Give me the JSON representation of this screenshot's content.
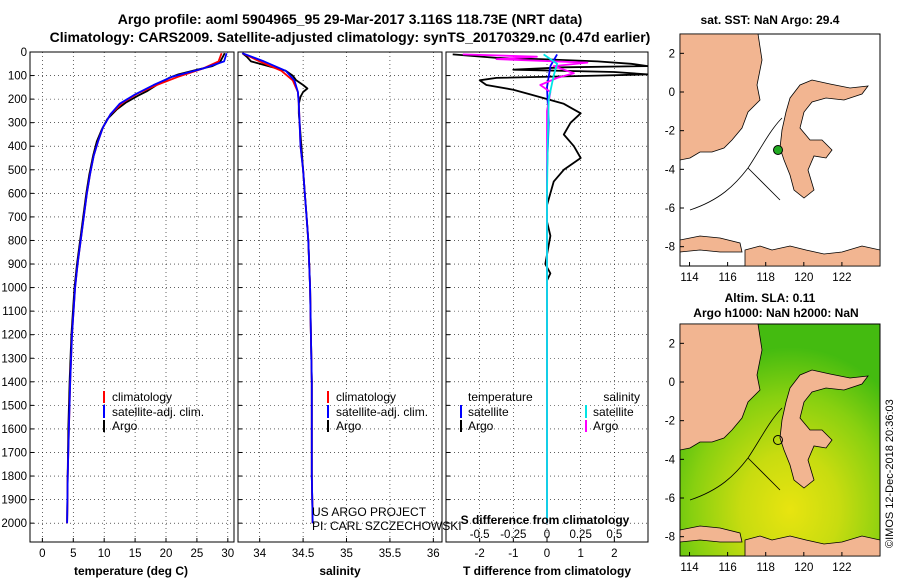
{
  "title_line1": "Argo profile: aoml 5904965_95 29-Mar-2017 3.116S 118.73E (NRT data)",
  "title_line2": "Climatology: CARS2009. Satellite-adjusted climatology: synTS_20170329.nc (0.47d earlier)",
  "credit": "©IMOS 12-Dec-2018 20:36:03",
  "colors": {
    "clim": "#ff0000",
    "sat": "#0000ff",
    "argo": "#000000",
    "sal_sat": "#00e5e5",
    "sal_argo": "#ff00ff",
    "land": "#f2b591"
  },
  "chart_data": [
    {
      "type": "line",
      "name": "temperature",
      "xlabel": "temperature (deg C)",
      "ylabel": "",
      "xlim": [
        -2,
        31
      ],
      "ylim": [
        2080,
        0
      ],
      "xticks": [
        0,
        5,
        10,
        15,
        20,
        25,
        30
      ],
      "yticks": [
        0,
        100,
        200,
        300,
        400,
        500,
        600,
        700,
        800,
        900,
        1000,
        1100,
        1200,
        1300,
        1400,
        1500,
        1600,
        1700,
        1800,
        1900,
        2000
      ],
      "legend": [
        "climatology",
        "satellite-adj. clim.",
        "Argo"
      ],
      "series": [
        {
          "name": "Argo",
          "color": "#000000",
          "points": [
            [
              29.5,
              5
            ],
            [
              29.3,
              15
            ],
            [
              29,
              30
            ],
            [
              28.7,
              45
            ],
            [
              27.5,
              60
            ],
            [
              25,
              75
            ],
            [
              22,
              95
            ],
            [
              20.5,
              110
            ],
            [
              18.5,
              140
            ],
            [
              17,
              165
            ],
            [
              15.5,
              185
            ],
            [
              13.5,
              215
            ],
            [
              12,
              245
            ],
            [
              10.5,
              285
            ],
            [
              9.6,
              330
            ],
            [
              8.8,
              380
            ],
            [
              8.2,
              440
            ],
            [
              7.6,
              520
            ],
            [
              7.1,
              600
            ],
            [
              6.6,
              700
            ],
            [
              6.1,
              800
            ],
            [
              5.6,
              900
            ],
            [
              5.2,
              1000
            ],
            [
              4.7,
              1200
            ],
            [
              4.4,
              1400
            ],
            [
              4.2,
              1600
            ],
            [
              4.1,
              1800
            ],
            [
              4,
              2000
            ]
          ]
        },
        {
          "name": "climatology",
          "color": "#ff0000",
          "points": [
            [
              29,
              5
            ],
            [
              28.5,
              40
            ],
            [
              26,
              70
            ],
            [
              22,
              105
            ],
            [
              18.5,
              140
            ],
            [
              15.5,
              175
            ],
            [
              13,
              215
            ],
            [
              11,
              265
            ],
            [
              9.8,
              320
            ],
            [
              9,
              380
            ],
            [
              8.3,
              440
            ],
            [
              7.7,
              520
            ],
            [
              7.2,
              600
            ],
            [
              6.7,
              700
            ],
            [
              6.2,
              800
            ],
            [
              5.7,
              900
            ],
            [
              5.3,
              1000
            ],
            [
              4.8,
              1200
            ],
            [
              4.5,
              1400
            ],
            [
              4.3,
              1600
            ],
            [
              4.1,
              1800
            ],
            [
              4,
              2000
            ]
          ]
        },
        {
          "name": "satellite-adj. clim.",
          "color": "#0000ff",
          "points": [
            [
              29.8,
              5
            ],
            [
              29.4,
              40
            ],
            [
              26,
              70
            ],
            [
              21,
              105
            ],
            [
              18,
              140
            ],
            [
              15,
              180
            ],
            [
              12.5,
              220
            ],
            [
              11,
              265
            ],
            [
              9.8,
              320
            ],
            [
              9,
              380
            ],
            [
              8.3,
              440
            ],
            [
              7.7,
              520
            ],
            [
              7.2,
              600
            ],
            [
              6.7,
              700
            ],
            [
              6.2,
              800
            ],
            [
              5.7,
              900
            ],
            [
              5.3,
              1000
            ],
            [
              4.8,
              1200
            ],
            [
              4.5,
              1400
            ],
            [
              4.3,
              1600
            ],
            [
              4.1,
              1800
            ],
            [
              4,
              2000
            ]
          ]
        }
      ]
    },
    {
      "type": "line",
      "name": "salinity",
      "xlabel": "salinity",
      "ylabel": "",
      "xlim": [
        33.75,
        36.1
      ],
      "ylim": [
        2080,
        0
      ],
      "xticks": [
        34,
        34.5,
        35,
        35.5,
        36
      ],
      "yticks": [
        0,
        100,
        200,
        300,
        400,
        500,
        600,
        700,
        800,
        900,
        1000,
        1100,
        1200,
        1300,
        1400,
        1500,
        1600,
        1700,
        1800,
        1900,
        2000
      ],
      "legend": [
        "climatology",
        "satellite-adj. clim.",
        "Argo"
      ],
      "series": [
        {
          "name": "Argo",
          "color": "#000000",
          "points": [
            [
              33.8,
              5
            ],
            [
              33.85,
              20
            ],
            [
              33.9,
              40
            ],
            [
              34.1,
              60
            ],
            [
              34.3,
              80
            ],
            [
              34.38,
              100
            ],
            [
              34.42,
              120
            ],
            [
              34.5,
              140
            ],
            [
              34.55,
              155
            ],
            [
              34.5,
              170
            ],
            [
              34.47,
              190
            ],
            [
              34.45,
              220
            ],
            [
              34.45,
              260
            ],
            [
              34.46,
              300
            ],
            [
              34.47,
              350
            ],
            [
              34.48,
              400
            ],
            [
              34.5,
              500
            ],
            [
              34.52,
              600
            ],
            [
              34.54,
              700
            ],
            [
              34.56,
              800
            ],
            [
              34.57,
              900
            ],
            [
              34.58,
              1000
            ],
            [
              34.59,
              1200
            ],
            [
              34.6,
              1400
            ],
            [
              34.6,
              1600
            ],
            [
              34.6,
              1800
            ],
            [
              34.61,
              2000
            ]
          ]
        },
        {
          "name": "climatology",
          "color": "#ff0000",
          "points": [
            [
              33.8,
              5
            ],
            [
              34,
              40
            ],
            [
              34.25,
              80
            ],
            [
              34.38,
              120
            ],
            [
              34.44,
              170
            ],
            [
              34.45,
              220
            ],
            [
              34.46,
              300
            ],
            [
              34.47,
              400
            ],
            [
              34.5,
              500
            ],
            [
              34.52,
              600
            ],
            [
              34.54,
              700
            ],
            [
              34.56,
              800
            ],
            [
              34.57,
              900
            ],
            [
              34.58,
              1000
            ],
            [
              34.59,
              1200
            ],
            [
              34.6,
              1400
            ],
            [
              34.6,
              1600
            ],
            [
              34.6,
              1800
            ],
            [
              34.61,
              2000
            ]
          ]
        },
        {
          "name": "satellite-adj. clim.",
          "color": "#0000ff",
          "points": [
            [
              33.8,
              5
            ],
            [
              34.05,
              40
            ],
            [
              34.3,
              80
            ],
            [
              34.4,
              120
            ],
            [
              34.44,
              170
            ],
            [
              34.45,
              220
            ],
            [
              34.46,
              300
            ],
            [
              34.47,
              400
            ],
            [
              34.5,
              500
            ],
            [
              34.52,
              600
            ],
            [
              34.54,
              700
            ],
            [
              34.56,
              800
            ],
            [
              34.57,
              900
            ],
            [
              34.58,
              1000
            ],
            [
              34.59,
              1200
            ],
            [
              34.6,
              1400
            ],
            [
              34.6,
              1600
            ],
            [
              34.6,
              1800
            ],
            [
              34.61,
              2000
            ]
          ]
        }
      ],
      "annotations": [
        "US ARGO PROJECT",
        "PI: CARL SZCZECHOWSKI"
      ]
    },
    {
      "type": "line",
      "name": "difference",
      "xlabel": "T difference from climatology",
      "x2label": "S difference from climatology",
      "xlim": [
        -3,
        3
      ],
      "ylim": [
        2080,
        0
      ],
      "xticks": [
        -2,
        -1,
        0,
        1,
        2
      ],
      "x2ticks": [
        -0.5,
        -0.25,
        0,
        0.25,
        0.5
      ],
      "yticks": [
        0,
        100,
        200,
        300,
        400,
        500,
        600,
        700,
        800,
        900,
        1000,
        1100,
        1200,
        1300,
        1400,
        1500,
        1600,
        1700,
        1800,
        1900,
        2000
      ],
      "legend_temperature": [
        "temperature",
        "satellite",
        "Argo"
      ],
      "legend_salinity": [
        "salinity",
        "satellite",
        "Argo"
      ],
      "series": [
        {
          "name": "T Argo",
          "color": "#000000",
          "points": [
            [
              -2.8,
              10
            ],
            [
              -1.5,
              25
            ],
            [
              -0.2,
              30
            ],
            [
              1.5,
              40
            ],
            [
              2.5,
              50
            ],
            [
              3,
              60
            ],
            [
              0.5,
              65
            ],
            [
              -1,
              75
            ],
            [
              2,
              85
            ],
            [
              3,
              95
            ],
            [
              1.5,
              100
            ],
            [
              -1.5,
              110
            ],
            [
              -2,
              120
            ],
            [
              -1.8,
              140
            ],
            [
              -1,
              160
            ],
            [
              -0.5,
              180
            ],
            [
              0.5,
              220
            ],
            [
              1,
              260
            ],
            [
              0.7,
              300
            ],
            [
              0.5,
              350
            ],
            [
              0.8,
              400
            ],
            [
              1,
              450
            ],
            [
              0.5,
              500
            ],
            [
              0.2,
              550
            ],
            [
              0,
              650
            ],
            [
              0,
              720
            ],
            [
              0.1,
              780
            ],
            [
              0.05,
              820
            ],
            [
              -0.05,
              900
            ],
            [
              0.1,
              940
            ],
            [
              0,
              970
            ],
            [
              0,
              2000
            ]
          ]
        },
        {
          "name": "T satellite",
          "color": "#0000ff",
          "points": [
            [
              0.3,
              10
            ],
            [
              0.1,
              60
            ],
            [
              0,
              150
            ],
            [
              0.05,
              300
            ],
            [
              0,
              500
            ],
            [
              0,
              1000
            ],
            [
              0,
              2000
            ]
          ]
        },
        {
          "name": "S Argo",
          "color": "#ff00ff",
          "points": [
            [
              -2.5,
              10
            ],
            [
              -0.3,
              20
            ],
            [
              -1.5,
              30
            ],
            [
              1.2,
              45
            ],
            [
              0.2,
              60
            ],
            [
              0.8,
              90
            ],
            [
              0.3,
              110
            ],
            [
              -0.2,
              140
            ],
            [
              0.1,
              170
            ],
            [
              0,
              250
            ],
            [
              0,
              2000
            ]
          ]
        },
        {
          "name": "S satellite",
          "color": "#00e5e5",
          "points": [
            [
              -0.1,
              10
            ],
            [
              0.3,
              50
            ],
            [
              0.2,
              100
            ],
            [
              0.05,
              200
            ],
            [
              0.02,
              400
            ],
            [
              0,
              600
            ],
            [
              0,
              1000
            ],
            [
              0,
              2000
            ]
          ]
        }
      ]
    },
    {
      "type": "map",
      "name": "sst-map",
      "title": "sat. SST: NaN Argo: 29.4",
      "xticks": [
        114,
        116,
        118,
        120,
        122
      ],
      "yticks": [
        2,
        0,
        -2,
        -4,
        -6,
        -8
      ],
      "xlim": [
        113.5,
        124
      ],
      "ylim": [
        -9,
        3
      ],
      "marker": [
        118.73,
        -3.116
      ]
    },
    {
      "type": "map",
      "name": "sla-map",
      "title_line1": "Altim. SLA: 0.11",
      "title_line2": "Argo h1000: NaN h2000: NaN",
      "xticks": [
        114,
        116,
        118,
        120,
        122
      ],
      "yticks": [
        2,
        0,
        -2,
        -4,
        -6,
        -8
      ],
      "xlim": [
        113.5,
        124
      ],
      "ylim": [
        -9,
        3
      ],
      "marker": [
        118.73,
        -3.116
      ]
    }
  ]
}
